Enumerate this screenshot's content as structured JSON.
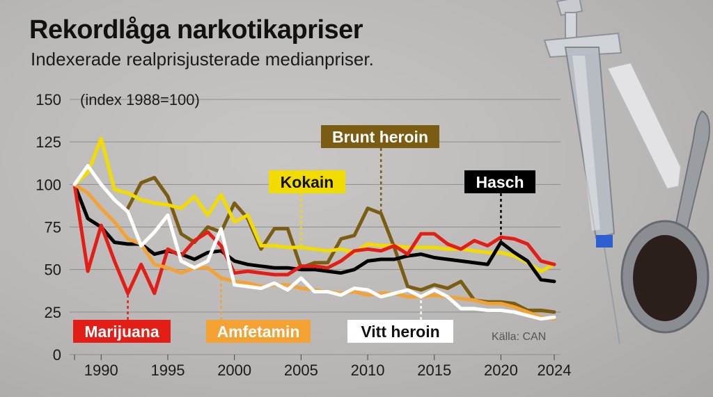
{
  "title": "Rekordlåga narkotikapriser",
  "subtitle": "Indexerade realprisjusterade medianpriser.",
  "source": "Källa: CAN",
  "chart_data": {
    "type": "line",
    "ylabel": "(index 1988=100)",
    "xlim": [
      1988,
      2024
    ],
    "ylim": [
      0,
      150
    ],
    "x_ticks": [
      1990,
      1995,
      2000,
      2005,
      2010,
      2015,
      2020,
      2024
    ],
    "y_ticks": [
      0,
      25,
      50,
      75,
      100,
      125,
      150
    ],
    "grid": true,
    "series": [
      {
        "name": "Brunt heroin",
        "color": "#7a5c12",
        "x": [
          1992,
          1993,
          1994,
          1995,
          1996,
          1997,
          1998,
          1999,
          2000,
          2001,
          2002,
          2003,
          2004,
          2005,
          2006,
          2007,
          2008,
          2009,
          2010,
          2011,
          2012,
          2013,
          2014,
          2015,
          2016,
          2017,
          2018,
          2019,
          2020,
          2021,
          2022,
          2023,
          2024
        ],
        "values": [
          86,
          101,
          104,
          93,
          71,
          66,
          75,
          72,
          89,
          80,
          62,
          74,
          74,
          51,
          54,
          54,
          68,
          70,
          86,
          83,
          63,
          40,
          38,
          41,
          39,
          43,
          32,
          31,
          31,
          30,
          26,
          26,
          25
        ]
      },
      {
        "name": "Kokain",
        "color": "#f2dc00",
        "x": [
          1988,
          1989,
          1990,
          1991,
          1992,
          1993,
          1994,
          1995,
          1996,
          1997,
          1998,
          1999,
          2000,
          2001,
          2002,
          2003,
          2004,
          2005,
          2006,
          2007,
          2008,
          2009,
          2010,
          2011,
          2012,
          2013,
          2014,
          2015,
          2016,
          2017,
          2018,
          2019,
          2020,
          2021,
          2022,
          2023,
          2024
        ],
        "values": [
          100,
          107,
          127,
          97,
          95,
          91,
          89,
          88,
          86,
          93,
          82,
          94,
          78,
          82,
          64,
          64,
          63,
          63,
          62,
          61,
          62,
          60,
          65,
          64,
          64,
          63,
          63,
          63,
          62,
          62,
          61,
          60,
          60,
          58,
          54,
          49,
          53
        ]
      },
      {
        "name": "Hasch",
        "color": "#000000",
        "x": [
          1988,
          1989,
          1990,
          1991,
          1992,
          1993,
          1994,
          1995,
          1996,
          1997,
          1998,
          1999,
          2000,
          2001,
          2002,
          2003,
          2004,
          2005,
          2006,
          2007,
          2008,
          2009,
          2010,
          2011,
          2012,
          2013,
          2014,
          2015,
          2016,
          2017,
          2018,
          2019,
          2020,
          2021,
          2022,
          2023,
          2024
        ],
        "values": [
          100,
          80,
          75,
          66,
          65,
          65,
          59,
          61,
          59,
          56,
          60,
          61,
          55,
          53,
          52,
          51,
          51,
          50,
          50,
          49,
          48,
          50,
          55,
          56,
          56,
          58,
          59,
          57,
          56,
          55,
          54,
          53,
          66,
          60,
          55,
          44,
          43
        ]
      },
      {
        "name": "Marijuana",
        "color": "#e31e16",
        "x": [
          1988,
          1989,
          1990,
          1991,
          1992,
          1993,
          1994,
          1995,
          1996,
          1997,
          1998,
          1999,
          2000,
          2001,
          2002,
          2003,
          2004,
          2005,
          2006,
          2007,
          2008,
          2009,
          2010,
          2011,
          2012,
          2013,
          2014,
          2015,
          2016,
          2017,
          2018,
          2019,
          2020,
          2021,
          2022,
          2023,
          2024
        ],
        "values": [
          100,
          49,
          76,
          55,
          36,
          53,
          36,
          62,
          58,
          67,
          72,
          64,
          48,
          49,
          48,
          47,
          47,
          52,
          52,
          51,
          55,
          61,
          62,
          61,
          64,
          59,
          71,
          71,
          65,
          62,
          67,
          64,
          69,
          68,
          65,
          55,
          53
        ]
      },
      {
        "name": "Amfetamin",
        "color": "#f3a233",
        "x": [
          1988,
          1989,
          1990,
          1991,
          1992,
          1993,
          1994,
          1995,
          1996,
          1997,
          1998,
          1999,
          2000,
          2001,
          2002,
          2003,
          2004,
          2005,
          2006,
          2007,
          2008,
          2009,
          2010,
          2011,
          2012,
          2013,
          2014,
          2015,
          2016,
          2017,
          2018,
          2019,
          2020,
          2021,
          2022,
          2023,
          2024
        ],
        "values": [
          100,
          95,
          86,
          78,
          68,
          65,
          53,
          51,
          48,
          51,
          51,
          45,
          43,
          42,
          40,
          41,
          41,
          39,
          38,
          37,
          36,
          37,
          35,
          36,
          36,
          34,
          34,
          35,
          34,
          33,
          32,
          30,
          30,
          28,
          25,
          22,
          21
        ]
      },
      {
        "name": "Vitt heroin",
        "color": "#ffffff",
        "x": [
          1988,
          1989,
          1990,
          1991,
          1992,
          1993,
          1994,
          1995,
          1996,
          1997,
          1998,
          1999,
          2000,
          2001,
          2002,
          2003,
          2004,
          2005,
          2006,
          2007,
          2008,
          2009,
          2010,
          2011,
          2012,
          2013,
          2014,
          2015,
          2016,
          2017,
          2018,
          2019,
          2020,
          2021,
          2022,
          2023,
          2024
        ],
        "values": [
          100,
          111,
          100,
          91,
          84,
          64,
          72,
          82,
          55,
          51,
          55,
          74,
          41,
          40,
          39,
          42,
          38,
          45,
          37,
          37,
          35,
          39,
          38,
          34,
          36,
          38,
          34,
          38,
          34,
          27,
          27,
          26,
          26,
          25,
          23,
          21,
          22
        ]
      }
    ],
    "labels": [
      {
        "series": "Brunt heroin",
        "text": "Brunt heroin",
        "bg": "#7a5c12",
        "fg": "#ffffff"
      },
      {
        "series": "Kokain",
        "text": "Kokain",
        "bg": "#f2dc00",
        "fg": "#111111"
      },
      {
        "series": "Hasch",
        "text": "Hasch",
        "bg": "#000000",
        "fg": "#ffffff"
      },
      {
        "series": "Marijuana",
        "text": "Marijuana",
        "bg": "#e31e16",
        "fg": "#ffffff"
      },
      {
        "series": "Amfetamin",
        "text": "Amfetamin",
        "bg": "#f3a233",
        "fg": "#ffffff"
      },
      {
        "series": "Vitt heroin",
        "text": "Vitt heroin",
        "bg": "#ffffff",
        "fg": "#111111"
      }
    ],
    "label_pointers": [
      {
        "series": "Brunt heroin",
        "x": 2011
      },
      {
        "series": "Kokain",
        "x": 2005
      },
      {
        "series": "Hasch",
        "x": 2020
      },
      {
        "series": "Marijuana",
        "x": 1992
      },
      {
        "series": "Amfetamin",
        "x": 1999
      },
      {
        "series": "Vitt heroin",
        "x": 2014
      }
    ]
  },
  "decoration": {
    "syringe_icon": "syringe-icon",
    "spoon_icon": "spoon-icon",
    "powder_icon": "powder-icon"
  }
}
